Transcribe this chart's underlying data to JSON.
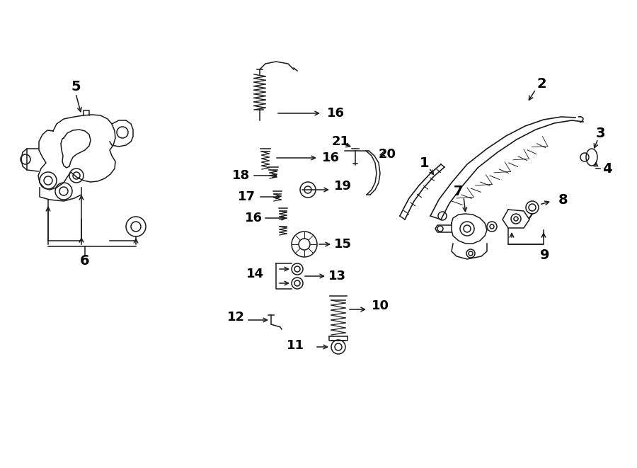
{
  "bg_color": "#ffffff",
  "line_color": "#1a1a1a",
  "fig_width": 9.0,
  "fig_height": 6.61,
  "dpi": 100,
  "labels": {
    "1": [
      601,
      235,
      620,
      225
    ],
    "2": [
      760,
      118,
      738,
      128
    ],
    "3": [
      845,
      183,
      833,
      205
    ],
    "4": [
      857,
      232,
      833,
      232
    ],
    "5": [
      107,
      135,
      120,
      165
    ],
    "6": [
      120,
      390,
      120,
      360
    ],
    "7": [
      651,
      278,
      668,
      298
    ],
    "8": [
      790,
      285,
      768,
      290
    ],
    "9": [
      768,
      360,
      768,
      340
    ],
    "10": [
      531,
      432,
      509,
      435
    ],
    "11": [
      417,
      483,
      430,
      470
    ],
    "12": [
      341,
      448,
      375,
      455
    ],
    "13": [
      500,
      390,
      465,
      390
    ],
    "14": [
      325,
      385,
      360,
      385
    ],
    "15": [
      495,
      345,
      460,
      345
    ],
    "16a": [
      480,
      160,
      440,
      160
    ],
    "16b": [
      480,
      223,
      440,
      223
    ],
    "16c": [
      388,
      308,
      420,
      308
    ],
    "17": [
      371,
      278,
      405,
      278
    ],
    "18": [
      362,
      248,
      400,
      248
    ],
    "19": [
      491,
      263,
      455,
      263
    ],
    "20": [
      543,
      218,
      527,
      218
    ],
    "21": [
      480,
      200,
      500,
      213
    ]
  }
}
